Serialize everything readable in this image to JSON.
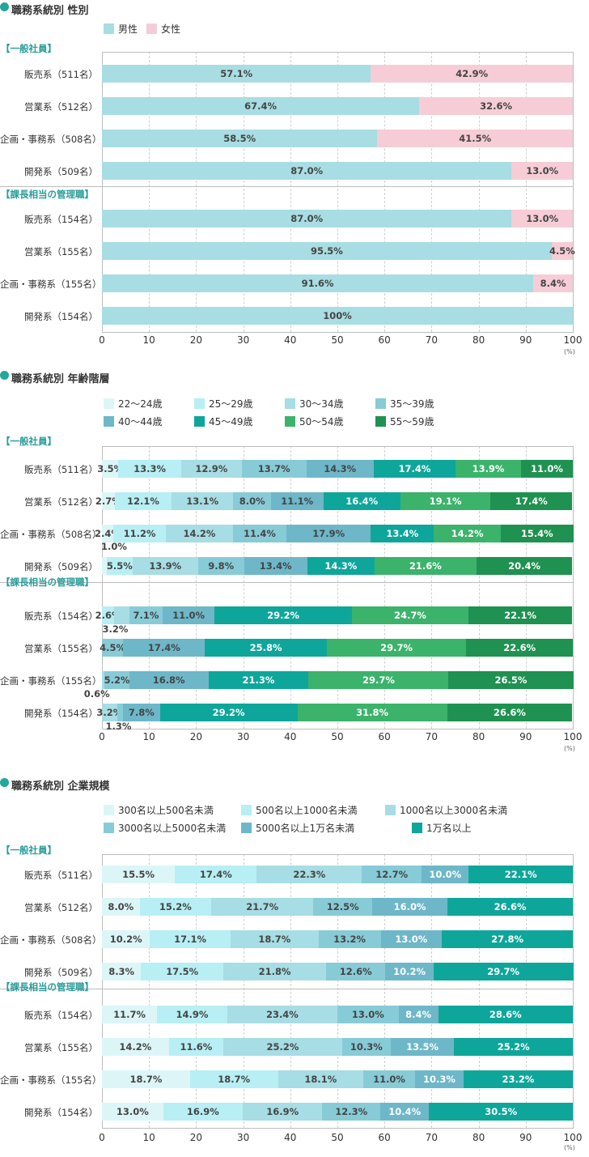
{
  "chart_data": [
    {
      "type": "bar",
      "orientation": "horizontal",
      "stacked": true,
      "title": "職務系統別 性別",
      "legend": [
        "男性",
        "女性"
      ],
      "colors": [
        "#a8dde3",
        "#f6cdd6"
      ],
      "groups": [
        {
          "label": "【一般社員】",
          "rows": [
            {
              "label": "販売系（511名）",
              "values": [
                57.1,
                42.9
              ]
            },
            {
              "label": "営業系（512名）",
              "values": [
                67.4,
                32.6
              ]
            },
            {
              "label": "企画・事務系（508名）",
              "values": [
                58.5,
                41.5
              ]
            },
            {
              "label": "開発系（509名）",
              "values": [
                87.0,
                13.0
              ]
            }
          ]
        },
        {
          "label": "【課長相当の管理職】",
          "rows": [
            {
              "label": "販売系（154名）",
              "values": [
                87.0,
                13.0
              ]
            },
            {
              "label": "営業系（155名）",
              "values": [
                95.5,
                4.5
              ]
            },
            {
              "label": "企画・事務系（155名）",
              "values": [
                91.6,
                8.4
              ]
            },
            {
              "label": "開発系（154名）",
              "values": [
                100,
                0
              ]
            }
          ]
        }
      ],
      "xlim": [
        0,
        100
      ],
      "ticks": [
        "0",
        "10",
        "20",
        "30",
        "40",
        "50",
        "60",
        "70",
        "80",
        "90",
        "100"
      ],
      "unit": "(%)"
    },
    {
      "type": "bar",
      "orientation": "horizontal",
      "stacked": true,
      "title": "職務系統別 年齢階層",
      "legend": [
        "22～24歳",
        "25～29歳",
        "30～34歳",
        "35～39歳",
        "40～44歳",
        "45～49歳",
        "50～54歳",
        "55～59歳"
      ],
      "colors": [
        "#dcf6f8",
        "#b7eff4",
        "#a7dde4",
        "#87cbd7",
        "#6db7c9",
        "#0ea69b",
        "#3bb36b",
        "#1f9150"
      ],
      "groups": [
        {
          "label": "【一般社員】",
          "rows": [
            {
              "label": "販売系（511名）",
              "values": [
                3.5,
                13.3,
                12.9,
                13.7,
                14.3,
                17.4,
                13.9,
                11.0
              ]
            },
            {
              "label": "営業系（512名）",
              "values": [
                2.7,
                12.1,
                13.1,
                8.0,
                11.1,
                16.4,
                19.1,
                17.4
              ]
            },
            {
              "label": "企画・事務系（508名）",
              "values": [
                2.4,
                11.2,
                14.2,
                11.4,
                17.9,
                13.4,
                14.2,
                15.4
              ]
            },
            {
              "label": "開発系（509名）",
              "values": [
                1.0,
                5.5,
                13.9,
                9.8,
                13.4,
                14.3,
                21.6,
                20.4
              ]
            }
          ]
        },
        {
          "label": "【課長相当の管理職】",
          "rows": [
            {
              "label": "販売系（154名）",
              "values": [
                0,
                2.6,
                3.2,
                7.1,
                11.0,
                29.2,
                24.7,
                22.1
              ]
            },
            {
              "label": "営業系（155名）",
              "values": [
                0,
                0,
                0,
                4.5,
                17.4,
                25.8,
                29.7,
                22.6
              ]
            },
            {
              "label": "企画・事務系（155名）",
              "values": [
                0,
                0,
                0.6,
                5.2,
                16.8,
                21.3,
                29.7,
                26.5
              ]
            },
            {
              "label": "開発系（154名）",
              "values": [
                0,
                0,
                3.2,
                1.3,
                7.8,
                29.2,
                31.8,
                26.6
              ]
            }
          ]
        }
      ],
      "xlim": [
        0,
        100
      ],
      "ticks": [
        "0",
        "10",
        "20",
        "30",
        "40",
        "50",
        "60",
        "70",
        "80",
        "90",
        "100"
      ],
      "unit": "(%)"
    },
    {
      "type": "bar",
      "orientation": "horizontal",
      "stacked": true,
      "title": "職務系統別 企業規模",
      "legend": [
        "300名以上500名未満",
        "500名以上1000名未満",
        "1000名以上3000名未満",
        "3000名以上5000名未満",
        "5000名以上1万名未満",
        "1万名以上"
      ],
      "colors": [
        "#dcf6f8",
        "#b7eff4",
        "#a7dde4",
        "#87cbd7",
        "#6db7c9",
        "#0ea69b"
      ],
      "groups": [
        {
          "label": "【一般社員】",
          "rows": [
            {
              "label": "販売系（511名）",
              "values": [
                15.5,
                17.4,
                22.3,
                12.7,
                10.0,
                22.1
              ]
            },
            {
              "label": "営業系（512名）",
              "values": [
                8.0,
                15.2,
                21.7,
                12.5,
                16.0,
                26.6
              ]
            },
            {
              "label": "企画・事務系（508名）",
              "values": [
                10.2,
                17.1,
                18.7,
                13.2,
                13.0,
                27.8
              ]
            },
            {
              "label": "開発系（509名）",
              "values": [
                8.3,
                17.5,
                21.8,
                12.6,
                10.2,
                29.7
              ]
            }
          ]
        },
        {
          "label": "【課長相当の管理職】",
          "rows": [
            {
              "label": "販売系（154名）",
              "values": [
                11.7,
                14.9,
                23.4,
                13.0,
                8.4,
                28.6
              ]
            },
            {
              "label": "営業系（155名）",
              "values": [
                14.2,
                11.6,
                25.2,
                10.3,
                13.5,
                25.2
              ]
            },
            {
              "label": "企画・事務系（155名）",
              "values": [
                18.7,
                18.7,
                18.1,
                11.0,
                10.3,
                23.2
              ]
            },
            {
              "label": "開発系（154名）",
              "values": [
                13.0,
                16.9,
                16.9,
                12.3,
                10.4,
                30.5
              ]
            }
          ]
        }
      ],
      "xlim": [
        0,
        100
      ],
      "ticks": [
        "0",
        "10",
        "20",
        "30",
        "40",
        "50",
        "60",
        "70",
        "80",
        "90",
        "100"
      ],
      "unit": "(%)"
    }
  ]
}
